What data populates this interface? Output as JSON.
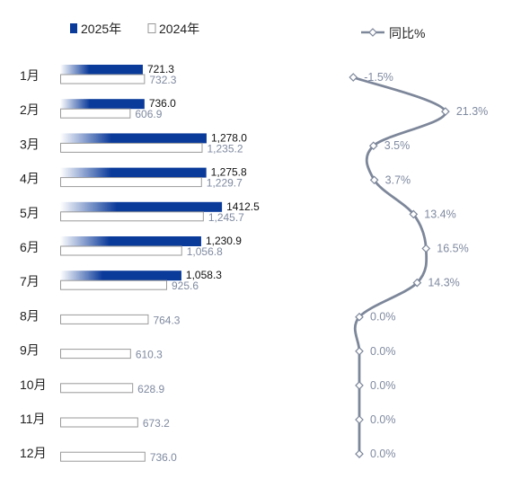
{
  "legend": {
    "series_2025": "2025年",
    "series_2024": "2024年",
    "series_yoy": "同比%"
  },
  "colors": {
    "bar_2025": "#0a3a9a",
    "bar_2024_border": "#9a9a9a",
    "yoy_line": "#7d879a",
    "label_muted": "#7f8aa0"
  },
  "chart_data": [
    {
      "type": "bar",
      "orientation": "horizontal",
      "categories": [
        "1月",
        "2月",
        "3月",
        "4月",
        "5月",
        "6月",
        "7月",
        "8月",
        "9月",
        "10月",
        "11月",
        "12月"
      ],
      "series": [
        {
          "name": "2025年",
          "values": [
            721.3,
            736.0,
            1278.0,
            1275.8,
            1412.5,
            1230.9,
            1058.3,
            null,
            null,
            null,
            null,
            null
          ],
          "labels": [
            "721.3",
            "736.0",
            "1,278.0",
            "1,275.8",
            "1412.5",
            "1,230.9",
            "1,058.3",
            "",
            "",
            "",
            "",
            ""
          ]
        },
        {
          "name": "2024年",
          "values": [
            732.3,
            606.9,
            1235.2,
            1229.7,
            1245.7,
            1056.8,
            925.6,
            764.3,
            610.3,
            628.9,
            673.2,
            736.0
          ],
          "labels": [
            "732.3",
            "606.9",
            "1,235.2",
            "1,229.7",
            "1,245.7",
            "1,056.8",
            "925.6",
            "764.3",
            "610.3",
            "628.9",
            "673.2",
            "736.0"
          ]
        }
      ]
    },
    {
      "type": "line",
      "categories": [
        "1月",
        "2月",
        "3月",
        "4月",
        "5月",
        "6月",
        "7月",
        "8月",
        "9月",
        "10月",
        "11月",
        "12月"
      ],
      "series": [
        {
          "name": "同比%",
          "values": [
            -1.5,
            21.3,
            3.5,
            3.7,
            13.4,
            16.5,
            14.3,
            0.0,
            0.0,
            0.0,
            0.0,
            0.0
          ],
          "labels": [
            "-1.5%",
            "21.3%",
            "3.5%",
            "3.7%",
            "13.4%",
            "16.5%",
            "14.3%",
            "0.0%",
            "0.0%",
            "0.0%",
            "0.0%",
            "0.0%"
          ]
        }
      ]
    }
  ]
}
